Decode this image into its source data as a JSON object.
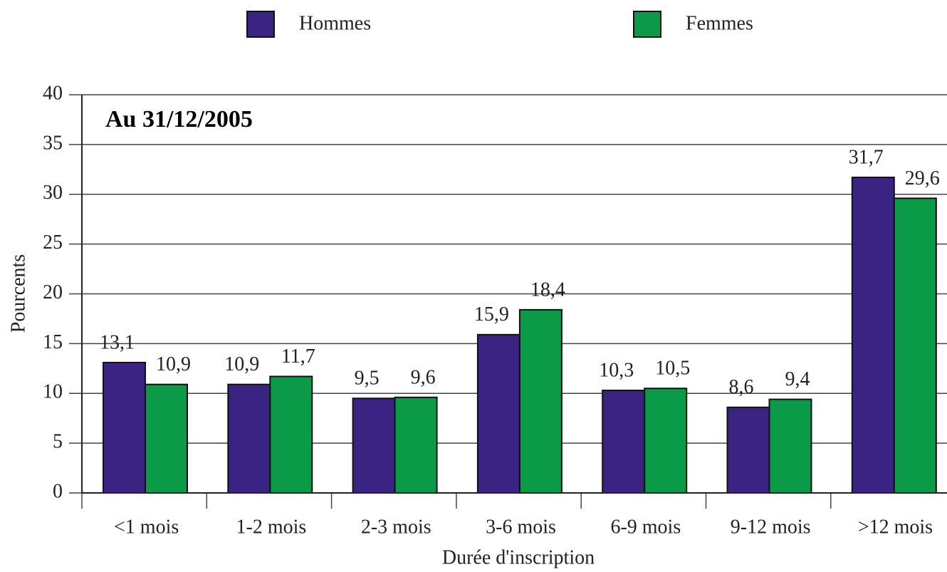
{
  "chart_data": {
    "type": "bar",
    "annotation": "Au 31/12/2005",
    "y_label": "Pourcents",
    "x_label": "Durée d'inscription",
    "categories": [
      "<1 mois",
      "1-2 mois",
      "2-3 mois",
      "3-6 mois",
      "6-9 mois",
      "9-12 mois",
      ">12 mois"
    ],
    "series": [
      {
        "name": "Hommes",
        "color": "#3b2384",
        "values": [
          13.1,
          10.9,
          9.5,
          15.9,
          10.3,
          8.6,
          31.7
        ],
        "value_labels": [
          "13,1",
          "10,9",
          "9,5",
          "15,9",
          "10,3",
          "8,6",
          "31,7"
        ]
      },
      {
        "name": "Femmes",
        "color": "#0b9a47",
        "values": [
          10.9,
          11.7,
          9.6,
          18.4,
          10.5,
          9.4,
          29.6
        ],
        "value_labels": [
          "10,9",
          "11,7",
          "9,6",
          "18,4",
          "10,5",
          "9,4",
          "29,6"
        ]
      }
    ],
    "ylim": [
      0,
      40
    ],
    "yticks": [
      0,
      5,
      10,
      15,
      20,
      25,
      30,
      35,
      40
    ],
    "grid": true,
    "legend": "top"
  }
}
